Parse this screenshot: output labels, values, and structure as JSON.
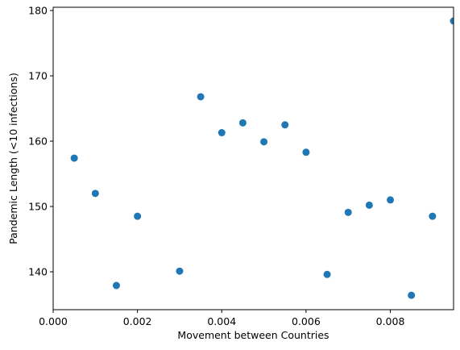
{
  "chart_data": {
    "type": "scatter",
    "title": "",
    "xlabel": "Movement between Countries",
    "ylabel": "Pandemic Length (<10 infections)",
    "xlim": [
      0.0,
      0.0095
    ],
    "ylim": [
      134.2,
      180.5
    ],
    "xticks": [
      0.0,
      0.002,
      0.004,
      0.006,
      0.008
    ],
    "xtick_labels": [
      "0.000",
      "0.002",
      "0.004",
      "0.006",
      "0.008"
    ],
    "yticks": [
      140,
      150,
      160,
      170,
      180
    ],
    "ytick_labels": [
      "140",
      "150",
      "160",
      "170",
      "180"
    ],
    "grid": false,
    "marker_color": "#1f77b4",
    "points": [
      {
        "x": 0.0005,
        "y": 157.4
      },
      {
        "x": 0.001,
        "y": 152.0
      },
      {
        "x": 0.0015,
        "y": 137.9
      },
      {
        "x": 0.002,
        "y": 148.5
      },
      {
        "x": 0.003,
        "y": 140.1
      },
      {
        "x": 0.0035,
        "y": 166.8
      },
      {
        "x": 0.004,
        "y": 161.3
      },
      {
        "x": 0.0045,
        "y": 162.8
      },
      {
        "x": 0.005,
        "y": 159.9
      },
      {
        "x": 0.0055,
        "y": 162.5
      },
      {
        "x": 0.006,
        "y": 158.3
      },
      {
        "x": 0.0065,
        "y": 139.6
      },
      {
        "x": 0.007,
        "y": 149.1
      },
      {
        "x": 0.0075,
        "y": 150.2
      },
      {
        "x": 0.008,
        "y": 151.0
      },
      {
        "x": 0.0085,
        "y": 136.4
      },
      {
        "x": 0.009,
        "y": 148.5
      },
      {
        "x": 0.0095,
        "y": 178.4
      }
    ]
  }
}
